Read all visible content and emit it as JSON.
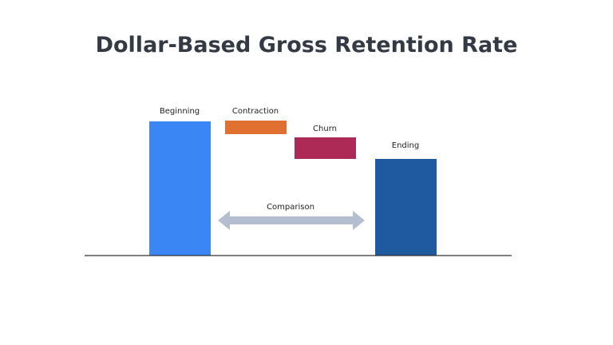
{
  "header": {
    "title": "Dollar-Based Gross Retention Rate"
  },
  "bars": [
    {
      "label": "Beginning"
    },
    {
      "label": "Contraction"
    },
    {
      "label": "Churn"
    },
    {
      "label": "Ending"
    }
  ],
  "arrow": {
    "label": "Comparison"
  }
}
